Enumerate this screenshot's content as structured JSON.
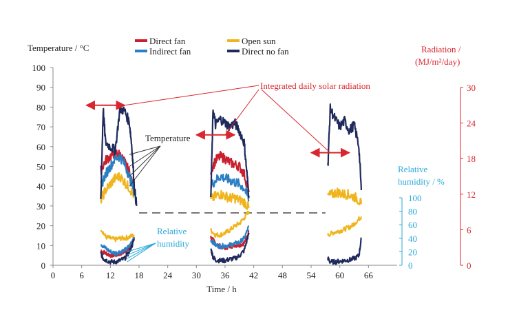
{
  "chart_data": {
    "type": "line",
    "title": "",
    "xlabel": "Time / h",
    "ylabel": "Temperature / °C",
    "xlim": [
      0,
      72
    ],
    "ylim": [
      0,
      100
    ],
    "x_ticks": [
      0,
      6,
      12,
      18,
      24,
      30,
      36,
      42,
      48,
      54,
      60,
      66
    ],
    "y_ticks": [
      0,
      10,
      20,
      30,
      40,
      50,
      60,
      70,
      80,
      90,
      100
    ],
    "right_axes": [
      {
        "label_line1": "Radiation /",
        "label_line2": "(MJ/m²/day)",
        "range": [
          0,
          30
        ],
        "ticks": [
          0,
          6,
          12,
          18,
          24,
          30
        ],
        "color": "#d9262f"
      },
      {
        "label_line1": "Relative",
        "label_line2": "humidity / %",
        "range": [
          0,
          100
        ],
        "ticks": [
          0,
          20,
          40,
          60,
          80,
          100
        ],
        "color": "#28a9d9"
      }
    ],
    "legend": [
      {
        "name": "Direct fan",
        "color": "#c8202f"
      },
      {
        "name": "Open sun",
        "color": "#f0b51e"
      },
      {
        "name": "Indirect fan",
        "color": "#2a7fc4"
      },
      {
        "name": "Direct no fan",
        "color": "#1f2a5c"
      }
    ],
    "temperature_series": [
      {
        "name": "Direct fan",
        "color": "#c8202f",
        "days": [
          {
            "x": [
              10.0,
              11.0,
              12.0,
              13.0,
              14.0,
              15.0,
              16.0,
              17.0
            ],
            "y": [
              48,
              53,
              55,
              57,
              56,
              52,
              47,
              38
            ]
          },
          {
            "x": [
              33.0,
              34.0,
              35.0,
              36.0,
              37.0,
              38.0,
              39.0,
              40.0,
              41.0
            ],
            "y": [
              48,
              53,
              55,
              54,
              52,
              51,
              50,
              46,
              37
            ]
          }
        ]
      },
      {
        "name": "Open sun",
        "color": "#f0b51e",
        "days": [
          {
            "x": [
              10.0,
              11.0,
              12.0,
              13.0,
              14.0,
              15.0,
              16.0,
              17.0
            ],
            "y": [
              33,
              38,
              41,
              44,
              45,
              42,
              39,
              35
            ]
          },
          {
            "x": [
              33.0,
              34.0,
              35.0,
              36.0,
              37.0,
              38.0,
              39.0,
              40.0,
              41.0
            ],
            "y": [
              33,
              35,
              36,
              35,
              34,
              34,
              33,
              32,
              29
            ]
          },
          {
            "x": [
              57.5,
              58.5,
              59.5,
              60.5,
              61.5,
              62.5,
              63.5,
              64.5
            ],
            "y": [
              35,
              36,
              37,
              36,
              36,
              35,
              34,
              31
            ]
          }
        ]
      },
      {
        "name": "Indirect fan",
        "color": "#2a7fc4",
        "days": [
          {
            "x": [
              10.0,
              11.0,
              12.0,
              13.0,
              14.0,
              15.0,
              16.0,
              17.0
            ],
            "y": [
              40,
              46,
              50,
              54,
              55,
              51,
              45,
              37
            ]
          },
          {
            "x": [
              33.0,
              34.0,
              35.0,
              36.0,
              37.0,
              38.0,
              39.0,
              40.0,
              41.0
            ],
            "y": [
              40,
              43,
              45,
              44,
              43,
              42,
              41,
              39,
              33
            ]
          }
        ]
      },
      {
        "name": "Direct no fan",
        "color": "#1f2a5c",
        "days": [
          {
            "x": [
              10.0,
              10.5,
              11.0,
              12.0,
              13.0,
              14.0,
              15.0,
              16.0,
              16.5,
              17.0,
              17.5
            ],
            "y": [
              33,
              79,
              62,
              60,
              58,
              79,
              78,
              72,
              60,
              40,
              30
            ]
          },
          {
            "x": [
              33.0,
              33.5,
              34.0,
              35.0,
              36.0,
              37.0,
              38.0,
              39.0,
              40.0,
              40.5,
              41.0
            ],
            "y": [
              33,
              79,
              71,
              74,
              72,
              70,
              72,
              68,
              62,
              48,
              35
            ]
          },
          {
            "x": [
              57.5,
              58.0,
              59.0,
              60.0,
              61.0,
              62.0,
              63.0,
              64.0,
              64.5
            ],
            "y": [
              50,
              79,
              74,
              70,
              73,
              68,
              71,
              60,
              38
            ]
          }
        ]
      }
    ],
    "humidity_series": [
      {
        "name": "Direct fan",
        "color": "#c8202f",
        "days": [
          {
            "x": [
              10.0,
              11.0,
              12.0,
              13.0,
              14.0,
              15.0,
              16.0,
              17.0
            ],
            "y": [
              22,
              18,
              15,
              15,
              17,
              20,
              25,
              40
            ]
          },
          {
            "x": [
              33.0,
              34.0,
              35.0,
              36.0,
              37.0,
              38.0,
              39.0,
              40.0,
              41.0
            ],
            "y": [
              42,
              32,
              28,
              26,
              28,
              30,
              30,
              33,
              50
            ]
          }
        ]
      },
      {
        "name": "Open sun",
        "color": "#f0b51e",
        "days": [
          {
            "x": [
              10.0,
              11.0,
              12.0,
              13.0,
              14.0,
              15.0,
              16.0,
              17.0
            ],
            "y": [
              55,
              42,
              40,
              38,
              40,
              40,
              42,
              45
            ]
          },
          {
            "x": [
              33.0,
              34.0,
              35.0,
              36.0,
              37.0,
              38.0,
              39.0,
              40.0,
              41.0
            ],
            "y": [
              52,
              45,
              45,
              48,
              52,
              58,
              62,
              70,
              80
            ]
          },
          {
            "x": [
              57.5,
              58.5,
              59.5,
              60.5,
              61.5,
              62.5,
              63.5,
              64.5
            ],
            "y": [
              45,
              48,
              50,
              52,
              55,
              58,
              65,
              72
            ]
          }
        ]
      },
      {
        "name": "Indirect fan",
        "color": "#2a7fc4",
        "days": [
          {
            "x": [
              10.0,
              11.0,
              12.0,
              13.0,
              14.0,
              15.0,
              16.0,
              17.0
            ],
            "y": [
              32,
              25,
              20,
              18,
              20,
              22,
              28,
              42
            ]
          },
          {
            "x": [
              33.0,
              34.0,
              35.0,
              36.0,
              37.0,
              38.0,
              39.0,
              40.0,
              41.0
            ],
            "y": [
              38,
              30,
              28,
              29,
              30,
              32,
              34,
              40,
              58
            ]
          }
        ]
      },
      {
        "name": "Direct no fan",
        "color": "#1f2a5c",
        "days": [
          {
            "x": [
              10.0,
              10.5,
              11.0,
              12.0,
              13.0,
              14.0,
              15.0,
              16.0,
              17.0
            ],
            "y": [
              18,
              10,
              8,
              5,
              5,
              7,
              10,
              20,
              38
            ]
          },
          {
            "x": [
              33.0,
              33.5,
              34.0,
              35.0,
              36.0,
              37.0,
              38.0,
              39.0,
              40.0,
              41.0
            ],
            "y": [
              25,
              12,
              8,
              7,
              7,
              9,
              10,
              14,
              22,
              48
            ]
          },
          {
            "x": [
              57.5,
              58.0,
              59.0,
              60.0,
              61.0,
              62.0,
              63.0,
              64.0,
              64.5
            ],
            "y": [
              10,
              5,
              5,
              6,
              7,
              8,
              10,
              14,
              40
            ]
          }
        ]
      }
    ],
    "radiation": [
      {
        "x_start": 7,
        "x_end": 15,
        "value": 27
      },
      {
        "x_start": 30,
        "x_end": 38,
        "value": 22
      },
      {
        "x_start": 54,
        "x_end": 62,
        "value": 19
      }
    ],
    "reference_line_y": 26.5,
    "annotations": {
      "radiation_label": "Integrated daily solar radiation",
      "temperature_label": "Temperature",
      "humidity_label_line1": "Relative",
      "humidity_label_line2": "humidity"
    }
  }
}
